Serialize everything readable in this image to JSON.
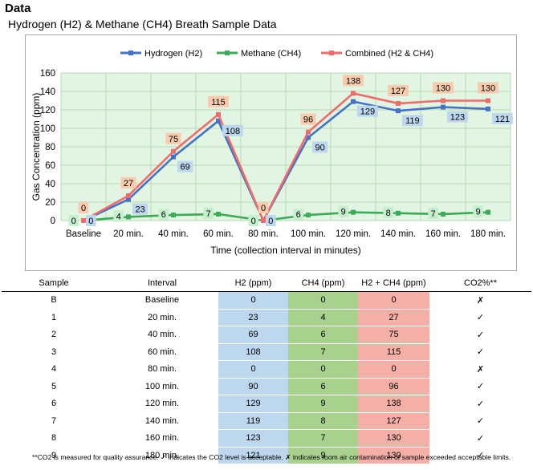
{
  "heading": "Data",
  "chart_data": {
    "type": "line",
    "title": "Hydrogen (H2) & Methane (CH4) Breath Sample Data",
    "xlabel": "Time (collection  interval in minutes)",
    "ylabel": "Gas Concentration  (ppm)",
    "categories": [
      "Baseline",
      "20 min.",
      "40 min.",
      "60 min.",
      "80 min.",
      "100 min.",
      "120 min.",
      "140 min.",
      "160 min.",
      "180 min."
    ],
    "ylim": [
      0,
      160
    ],
    "yticks": [
      0,
      20,
      40,
      60,
      80,
      100,
      120,
      140,
      160
    ],
    "grid": true,
    "legend_position": "top",
    "series": [
      {
        "name": "Hydrogen (H2)",
        "color": "#4472c4",
        "label_bg": "#bdd7ee",
        "values": [
          0,
          23,
          69,
          108,
          0,
          90,
          129,
          119,
          123,
          121
        ]
      },
      {
        "name": "Methane (CH4)",
        "color": "#3daa57",
        "label_bg": "#c6efce",
        "values": [
          0,
          4,
          6,
          7,
          0,
          6,
          9,
          8,
          7,
          9
        ]
      },
      {
        "name": "Combined (H2 & CH4)",
        "color": "#f26b6b",
        "label_bg": "#f8cbad",
        "values": [
          0,
          27,
          75,
          115,
          0,
          96,
          138,
          127,
          130,
          130
        ]
      }
    ]
  },
  "table": {
    "headers": [
      "Sample",
      "Interval",
      "H2 (ppm)",
      "CH4 (ppm)",
      "H2 + CH4 (ppm)",
      "CO2%**"
    ],
    "rows": [
      [
        "B",
        "Baseline",
        "0",
        "0",
        "0",
        "✗"
      ],
      [
        "1",
        "20 min.",
        "23",
        "4",
        "27",
        "✓"
      ],
      [
        "2",
        "40 min.",
        "69",
        "6",
        "75",
        "✓"
      ],
      [
        "3",
        "60 min.",
        "108",
        "7",
        "115",
        "✓"
      ],
      [
        "4",
        "80 min.",
        "0",
        "0",
        "0",
        "✗"
      ],
      [
        "5",
        "100 min.",
        "90",
        "6",
        "96",
        "✓"
      ],
      [
        "6",
        "120 min.",
        "129",
        "9",
        "138",
        "✓"
      ],
      [
        "7",
        "140 min.",
        "119",
        "8",
        "127",
        "✓"
      ],
      [
        "8",
        "160 min.",
        "123",
        "7",
        "130",
        "✓"
      ],
      [
        "9",
        "180 min.",
        "121",
        "9",
        "130",
        "✓"
      ]
    ]
  },
  "footnote": "**CO2 is measured for quality assurance. ✓ indicates the CO2 level is acceptable. ✗ indicates room air contamination of sample exceeded acceptable limits."
}
